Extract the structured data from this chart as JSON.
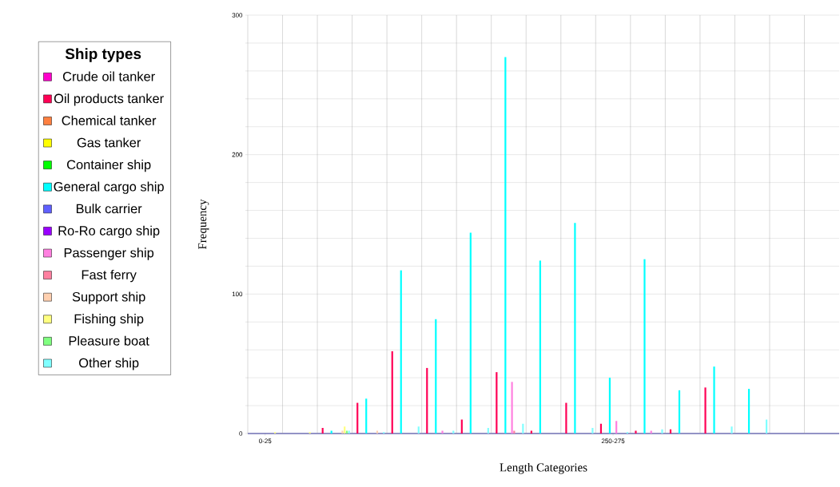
{
  "chart_data": {
    "type": "bar",
    "xlabel": "Length Categories",
    "ylabel": "Frequency",
    "legend_title": "Ship types",
    "categories": [
      "0-25",
      null,
      null,
      null,
      null,
      null,
      null,
      null,
      null,
      null,
      "250-275",
      null,
      null,
      null,
      null,
      null,
      null
    ],
    "series": [
      {
        "name": "Crude oil tanker",
        "color": "#ff00cc",
        "values": [
          0,
          0,
          0,
          0,
          0,
          0,
          0,
          0,
          0,
          0,
          0,
          0,
          0,
          0,
          0,
          0,
          0
        ]
      },
      {
        "name": "Oil products tanker",
        "color": "#ff0055",
        "values": [
          0,
          0,
          4,
          22,
          59,
          47,
          10,
          44,
          2,
          22,
          7,
          2,
          3,
          33,
          0,
          0,
          0
        ]
      },
      {
        "name": "Chemical tanker",
        "color": "#ff8040",
        "values": [
          0,
          0,
          0,
          0,
          0,
          0,
          0,
          0,
          0,
          0,
          0,
          0,
          0,
          0,
          0,
          0,
          0
        ]
      },
      {
        "name": "Gas tanker",
        "color": "#ffff00",
        "values": [
          0,
          0,
          0,
          0,
          0,
          0,
          0,
          0,
          0,
          0,
          0,
          0,
          0,
          0,
          0,
          0,
          0
        ]
      },
      {
        "name": "Container ship",
        "color": "#00ff00",
        "values": [
          0,
          0,
          0,
          0,
          0,
          0,
          0,
          0,
          0,
          0,
          0,
          0,
          0,
          0,
          0,
          0,
          0
        ]
      },
      {
        "name": "General cargo ship",
        "color": "#00ffff",
        "values": [
          0,
          0,
          2,
          25,
          117,
          82,
          144,
          270,
          124,
          151,
          40,
          125,
          31,
          48,
          32,
          0,
          0
        ]
      },
      {
        "name": "Bulk carrier",
        "color": "#6060ff",
        "values": [
          0,
          0,
          0,
          0,
          0,
          0,
          0,
          0,
          0,
          0,
          0,
          0,
          0,
          0,
          0,
          0,
          0
        ]
      },
      {
        "name": "Ro-Ro cargo ship",
        "color": "#9900ff",
        "values": [
          0,
          0,
          0,
          0,
          0,
          0,
          0,
          0,
          0,
          0,
          0,
          0,
          0,
          0,
          0,
          0,
          0
        ]
      },
      {
        "name": "Passenger ship",
        "color": "#ff80e0",
        "values": [
          0,
          0,
          0,
          0,
          0,
          2,
          0,
          37,
          0,
          0,
          9,
          2,
          0,
          0,
          0,
          0,
          0
        ]
      },
      {
        "name": "Fast ferry",
        "color": "#ff80a0",
        "values": [
          0,
          0,
          0,
          0,
          0,
          0,
          0,
          2,
          0,
          0,
          0,
          0,
          0,
          0,
          0,
          0,
          0
        ]
      },
      {
        "name": "Support ship",
        "color": "#ffd0b0",
        "values": [
          0,
          0,
          2,
          2,
          0,
          0,
          0,
          0,
          0,
          0,
          0,
          0,
          0,
          0,
          0,
          0,
          0
        ]
      },
      {
        "name": "Fishing ship",
        "color": "#ffff80",
        "values": [
          1,
          1,
          5,
          0,
          0,
          0,
          0,
          0,
          0,
          0,
          0,
          0,
          0,
          0,
          0,
          0,
          0
        ]
      },
      {
        "name": "Pleasure boat",
        "color": "#80ff80",
        "values": [
          0,
          0,
          2,
          0,
          0,
          0,
          0,
          0,
          0,
          0,
          0,
          0,
          0,
          0,
          0,
          0,
          0
        ]
      },
      {
        "name": "Other ship",
        "color": "#80ffff",
        "values": [
          0,
          0,
          2,
          1,
          5,
          2,
          4,
          7,
          0,
          4,
          1,
          3,
          0,
          5,
          10,
          0,
          0
        ]
      }
    ],
    "ylim": [
      0,
      300
    ],
    "yticks": [
      0,
      {
        "value": 20,
        "label": null
      },
      {
        "value": 40,
        "label": null
      },
      {
        "value": 60,
        "label": null
      },
      {
        "value": 80,
        "label": null
      },
      100,
      {
        "value": 120,
        "label": null
      },
      {
        "value": 140,
        "label": null
      },
      {
        "value": 160,
        "label": null
      },
      {
        "value": 180,
        "label": null
      },
      200,
      {
        "value": 220,
        "label": null
      },
      {
        "value": 240,
        "label": null
      },
      {
        "value": 260,
        "label": null
      },
      {
        "value": 280,
        "label": null
      },
      300
    ],
    "grid": true,
    "legend": "left"
  }
}
